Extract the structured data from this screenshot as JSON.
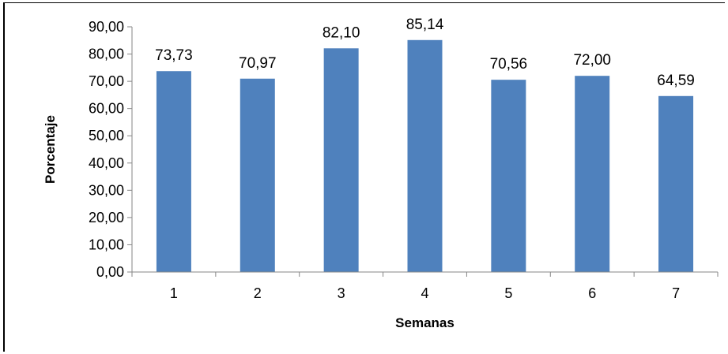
{
  "chart_data": {
    "type": "bar",
    "categories": [
      "1",
      "2",
      "3",
      "4",
      "5",
      "6",
      "7"
    ],
    "values": [
      73.73,
      70.97,
      82.1,
      85.14,
      70.56,
      72.0,
      64.59
    ],
    "value_labels": [
      "73,73",
      "70,97",
      "82,10",
      "85,14",
      "70,56",
      "72,00",
      "64,59"
    ],
    "y_ticks": [
      0,
      10,
      20,
      30,
      40,
      50,
      60,
      70,
      80,
      90
    ],
    "y_tick_labels": [
      "0,00",
      "10,00",
      "20,00",
      "30,00",
      "40,00",
      "50,00",
      "60,00",
      "70,00",
      "80,00",
      "90,00"
    ],
    "ylim": [
      0,
      90
    ],
    "xlabel": "Semanas",
    "ylabel": "Porcentaje",
    "title": "",
    "grid": false,
    "legend": "none",
    "bar_color": "#4F81BD",
    "axis_color": "#868686"
  }
}
